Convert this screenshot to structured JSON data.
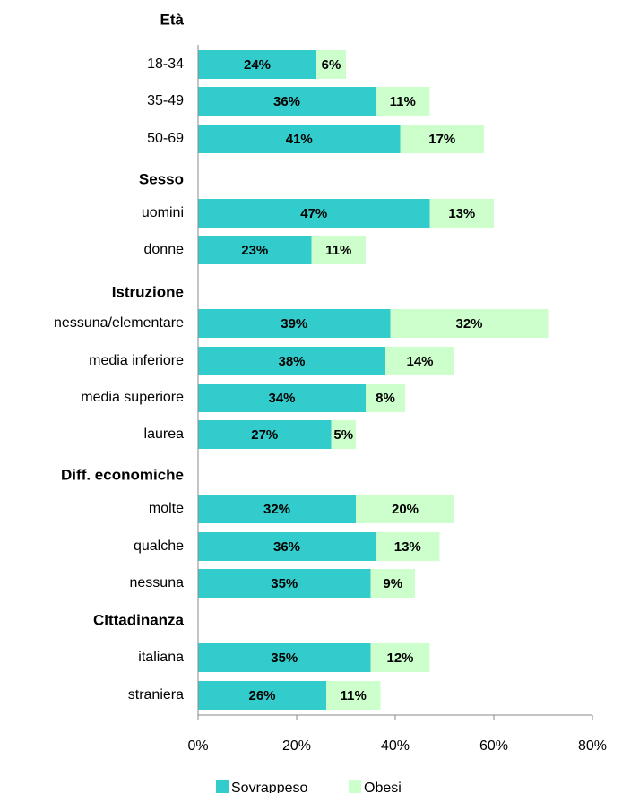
{
  "chart_data": {
    "type": "bar",
    "orientation": "horizontal",
    "stacked": true,
    "groups": [
      {
        "header": "Età",
        "categories": [
          "18-34",
          "35-49",
          "50-69"
        ]
      },
      {
        "header": "Sesso",
        "categories": [
          "uomini",
          "donne"
        ]
      },
      {
        "header": "Istruzione",
        "categories": [
          "nessuna/elementare",
          "media inferiore",
          "media superiore",
          "laurea"
        ]
      },
      {
        "header": "Diff. economiche",
        "categories": [
          "molte",
          "qualche",
          "nessuna"
        ]
      },
      {
        "header": "CIttadinanza",
        "categories": [
          "italiana",
          "straniera"
        ]
      }
    ],
    "series": [
      {
        "name": "Sovrappeso",
        "color": "#33cccc",
        "values": [
          24,
          36,
          41,
          47,
          23,
          39,
          38,
          34,
          27,
          32,
          36,
          35,
          35,
          26
        ],
        "labels": [
          "24%",
          "36%",
          "41%",
          "47%",
          "23%",
          "39%",
          "38%",
          "34%",
          "27%",
          "32%",
          "36%",
          "35%",
          "35%",
          "26%"
        ]
      },
      {
        "name": "Obesi",
        "color": "#ccffcc",
        "values": [
          6,
          11,
          17,
          13,
          11,
          32,
          14,
          8,
          5,
          20,
          13,
          9,
          12,
          11
        ],
        "labels": [
          "6%",
          "11%",
          "17%",
          "13%",
          "11%",
          "32%",
          "14%",
          "8%",
          "5%",
          "20%",
          "13%",
          "9%",
          "12%",
          "11%"
        ]
      }
    ],
    "xlim": [
      0,
      80
    ],
    "xticks": [
      0,
      20,
      40,
      60,
      80
    ],
    "xtick_labels": [
      "0%",
      "20%",
      "40%",
      "60%",
      "80%"
    ],
    "legend": "bottom",
    "grid": false
  }
}
